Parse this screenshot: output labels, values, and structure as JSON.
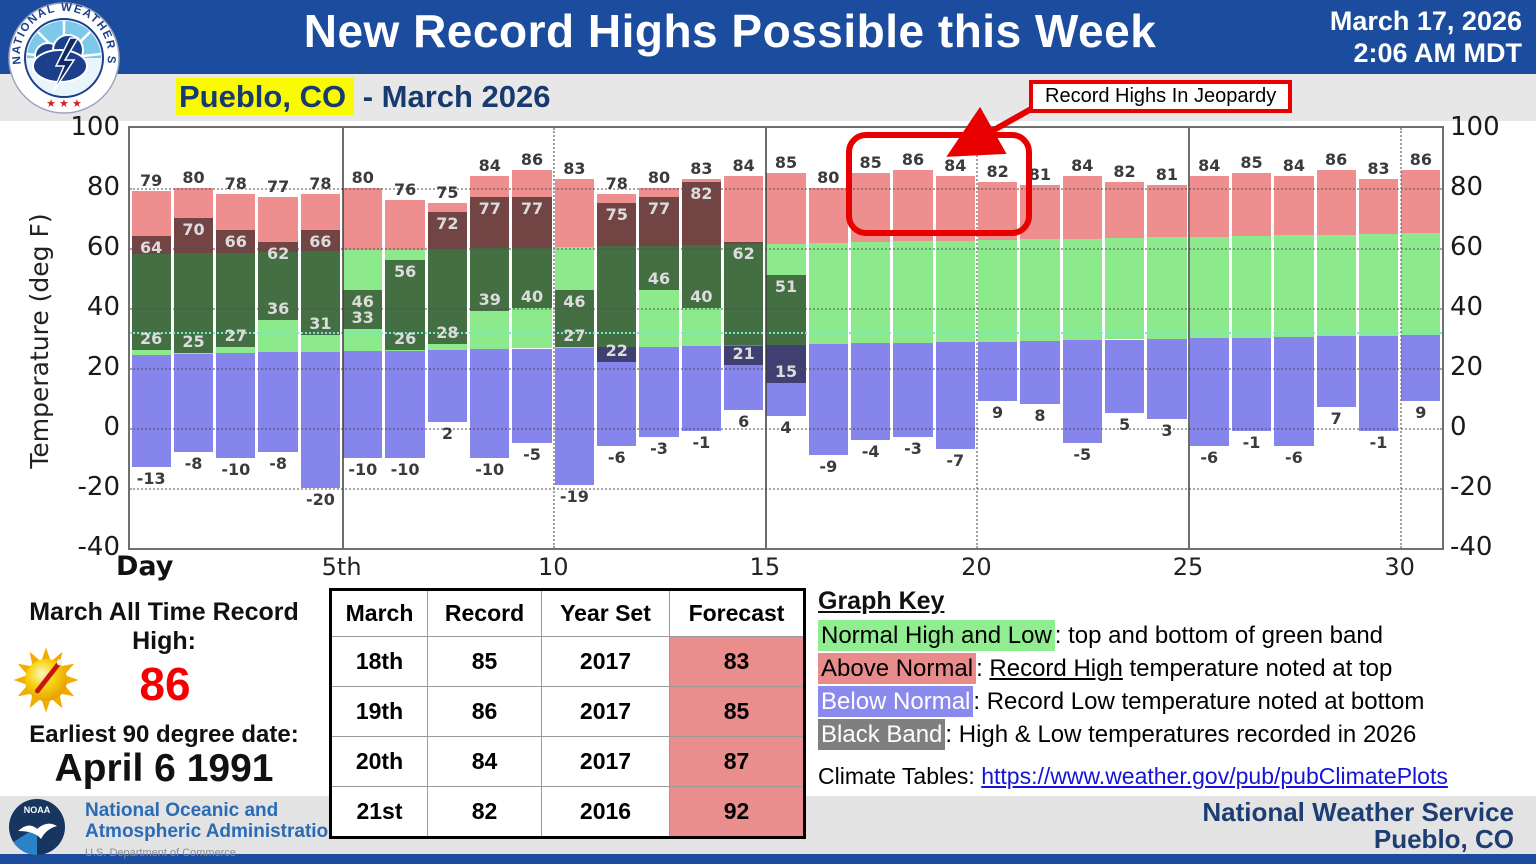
{
  "header": {
    "title": "New Record Highs Possible this Week",
    "date_line1": "March 17, 2026",
    "date_line2": "2:06 AM MDT",
    "location": "Pueblo, CO",
    "subtitle_suffix": " - March 2026",
    "annotation": "Record Highs In Jeopardy"
  },
  "chart_data": {
    "type": "bar",
    "title": "",
    "xlabel": "Day",
    "ylabel": "Temperature (deg F)",
    "ylim": [
      -40,
      100
    ],
    "yticks": [
      100,
      80,
      60,
      40,
      20,
      0,
      -20,
      -40
    ],
    "grid_lines": [
      80,
      60,
      40,
      20,
      0,
      -20
    ],
    "freezing_line": 32,
    "xticks": [
      {
        "day": 5,
        "label": "5th",
        "line": "solid"
      },
      {
        "day": 10,
        "label": "10",
        "line": "dotted"
      },
      {
        "day": 15,
        "label": "15",
        "line": "solid"
      },
      {
        "day": 20,
        "label": "20",
        "line": "dotted"
      },
      {
        "day": 25,
        "label": "25",
        "line": "solid"
      },
      {
        "day": 30,
        "label": "30",
        "line": "dotted"
      }
    ],
    "days": 31,
    "series": [
      {
        "name": "record_high",
        "values": [
          79,
          80,
          78,
          77,
          78,
          80,
          76,
          75,
          84,
          86,
          83,
          78,
          80,
          83,
          84,
          85,
          80,
          85,
          86,
          84,
          82,
          81,
          84,
          82,
          81,
          84,
          85,
          84,
          86,
          83,
          86
        ]
      },
      {
        "name": "record_low",
        "values": [
          -13,
          -8,
          -10,
          -8,
          -20,
          -10,
          -10,
          2,
          -10,
          -5,
          -19,
          -6,
          -3,
          -1,
          6,
          4,
          -9,
          -4,
          -3,
          -7,
          9,
          8,
          -5,
          5,
          3,
          -6,
          -1,
          -6,
          7,
          -1,
          9
        ]
      },
      {
        "name": "normal_high",
        "values": [
          58,
          58.2,
          58.5,
          58.7,
          58.9,
          59.2,
          59.4,
          59.6,
          59.9,
          60.1,
          60.3,
          60.6,
          60.8,
          61,
          61.3,
          61.5,
          61.7,
          62,
          62.2,
          62.4,
          62.7,
          62.9,
          63.1,
          63.4,
          63.6,
          63.8,
          64.1,
          64.3,
          64.5,
          64.8,
          65
        ]
      },
      {
        "name": "normal_low",
        "values": [
          24.5,
          24.7,
          24.9,
          25.2,
          25.4,
          25.6,
          25.8,
          26,
          26.2,
          26.5,
          26.7,
          26.9,
          27.1,
          27.3,
          27.5,
          27.8,
          28,
          28.2,
          28.4,
          28.6,
          28.8,
          29.1,
          29.3,
          29.5,
          29.7,
          29.9,
          30.1,
          30.4,
          30.6,
          30.8,
          31
        ]
      },
      {
        "name": "observed_high_2026",
        "values": [
          64,
          70,
          66,
          62,
          66,
          46,
          56,
          72,
          77,
          77,
          46,
          75,
          77,
          82,
          62,
          51,
          null,
          null,
          null,
          null,
          null,
          null,
          null,
          null,
          null,
          null,
          null,
          null,
          null,
          null,
          null
        ]
      },
      {
        "name": "observed_low_2026",
        "values": [
          26,
          25,
          27,
          36,
          31,
          33,
          26,
          28,
          39,
          40,
          27,
          22,
          46,
          40,
          21,
          15,
          null,
          null,
          null,
          null,
          null,
          null,
          null,
          null,
          null,
          null,
          null,
          null,
          null,
          null,
          null
        ]
      }
    ],
    "highlight_box_days": [
      18,
      21
    ],
    "colors": {
      "above_normal": "#ef8e8e",
      "normal_band": "#8ce98c",
      "below_normal": "#8585ec",
      "observed_overlay": "rgba(0,0,0,0.52)",
      "freezing": "#6fe9d2",
      "annotation_red": "#e80000"
    }
  },
  "left_panel": {
    "record_title": "March All Time Record High:",
    "record_value": "86",
    "earliest_label": "Earliest 90 degree date:",
    "earliest_value": "April 6 1991"
  },
  "table": {
    "headers": [
      "March",
      "Record",
      "Year Set",
      "Forecast"
    ],
    "rows": [
      [
        "18th",
        "85",
        "2017",
        "83"
      ],
      [
        "19th",
        "86",
        "2017",
        "85"
      ],
      [
        "20th",
        "84",
        "2017",
        "87"
      ],
      [
        "21st",
        "82",
        "2016",
        "92"
      ]
    ],
    "forecast_bg": "#e98d8d"
  },
  "key": {
    "title": "Graph Key",
    "items": [
      {
        "label": "Normal High and Low",
        "label_bg": "#90ee90",
        "label_color": "#000000",
        "segments": [
          {
            "text": ": top and bottom of green band",
            "underline": false
          }
        ]
      },
      {
        "label": "Above Normal",
        "label_bg": "#e88b8b",
        "label_color": "#000000",
        "segments": [
          {
            "text": ": ",
            "underline": false
          },
          {
            "text": "Record High",
            "underline": true
          },
          {
            "text": " temperature noted at top",
            "underline": false
          }
        ]
      },
      {
        "label": "Below Normal",
        "label_bg": "#8a8aee",
        "label_color": "#ffffff",
        "segments": [
          {
            "text": ": Record Low temperature noted at bottom",
            "underline": false
          }
        ]
      },
      {
        "label": "Black Band",
        "label_bg": "#7f7f7f",
        "label_color": "#ffffff",
        "segments": [
          {
            "text": ": High & Low temperatures recorded in 2026",
            "underline": false
          }
        ]
      }
    ],
    "climate_label": "Climate Tables: ",
    "climate_link": "https://www.weather.gov/pub/pubClimatePlots"
  },
  "footer": {
    "noaa_line1": "National Oceanic and",
    "noaa_line2": "Atmospheric Administration",
    "noaa_line3": "U.S. Department of Commerce",
    "nws_line1": "National Weather Service",
    "nws_line2": "Pueblo, CO"
  }
}
